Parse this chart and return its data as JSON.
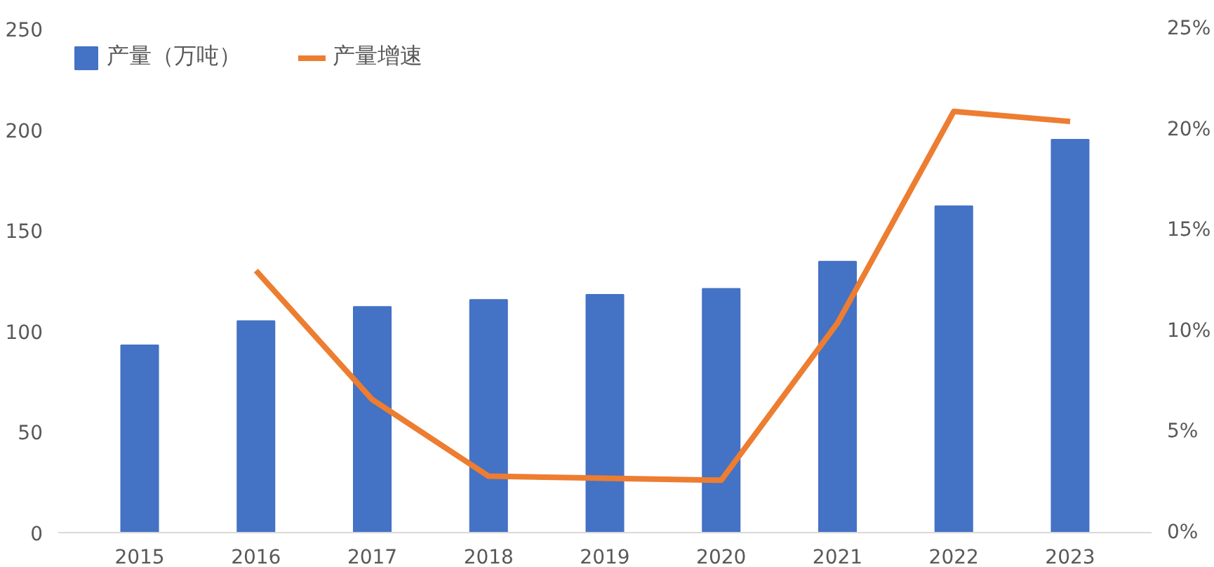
{
  "chart_data": {
    "type": "bar",
    "categories": [
      "2015",
      "2016",
      "2017",
      "2018",
      "2019",
      "2020",
      "2021",
      "2022",
      "2023"
    ],
    "series": [
      {
        "name": "产量（万吨）",
        "color": "#4472c4",
        "values": [
          93,
          105,
          112,
          115.5,
          118,
          121,
          134.5,
          162,
          195
        ]
      },
      {
        "name": "产量增速",
        "color": "#ed7d31",
        "type": "line",
        "axis": "y2",
        "values": [
          null,
          13,
          6.6,
          2.8,
          2.7,
          2.6,
          10.4,
          20.9,
          20.4
        ]
      }
    ],
    "ylim": [
      0,
      250
    ],
    "yticks": [
      0,
      50,
      100,
      150,
      200,
      250
    ],
    "y2lim": [
      0,
      25
    ],
    "y2ticks": [
      {
        "value": 0,
        "label": "0%"
      },
      {
        "value": 5,
        "label": "5%"
      },
      {
        "value": 10,
        "label": "10%"
      },
      {
        "value": 15,
        "label": "15%"
      },
      {
        "value": 20,
        "label": "20%"
      },
      {
        "value": 25,
        "label": "25%"
      }
    ],
    "legend": "top left",
    "grid": false
  }
}
